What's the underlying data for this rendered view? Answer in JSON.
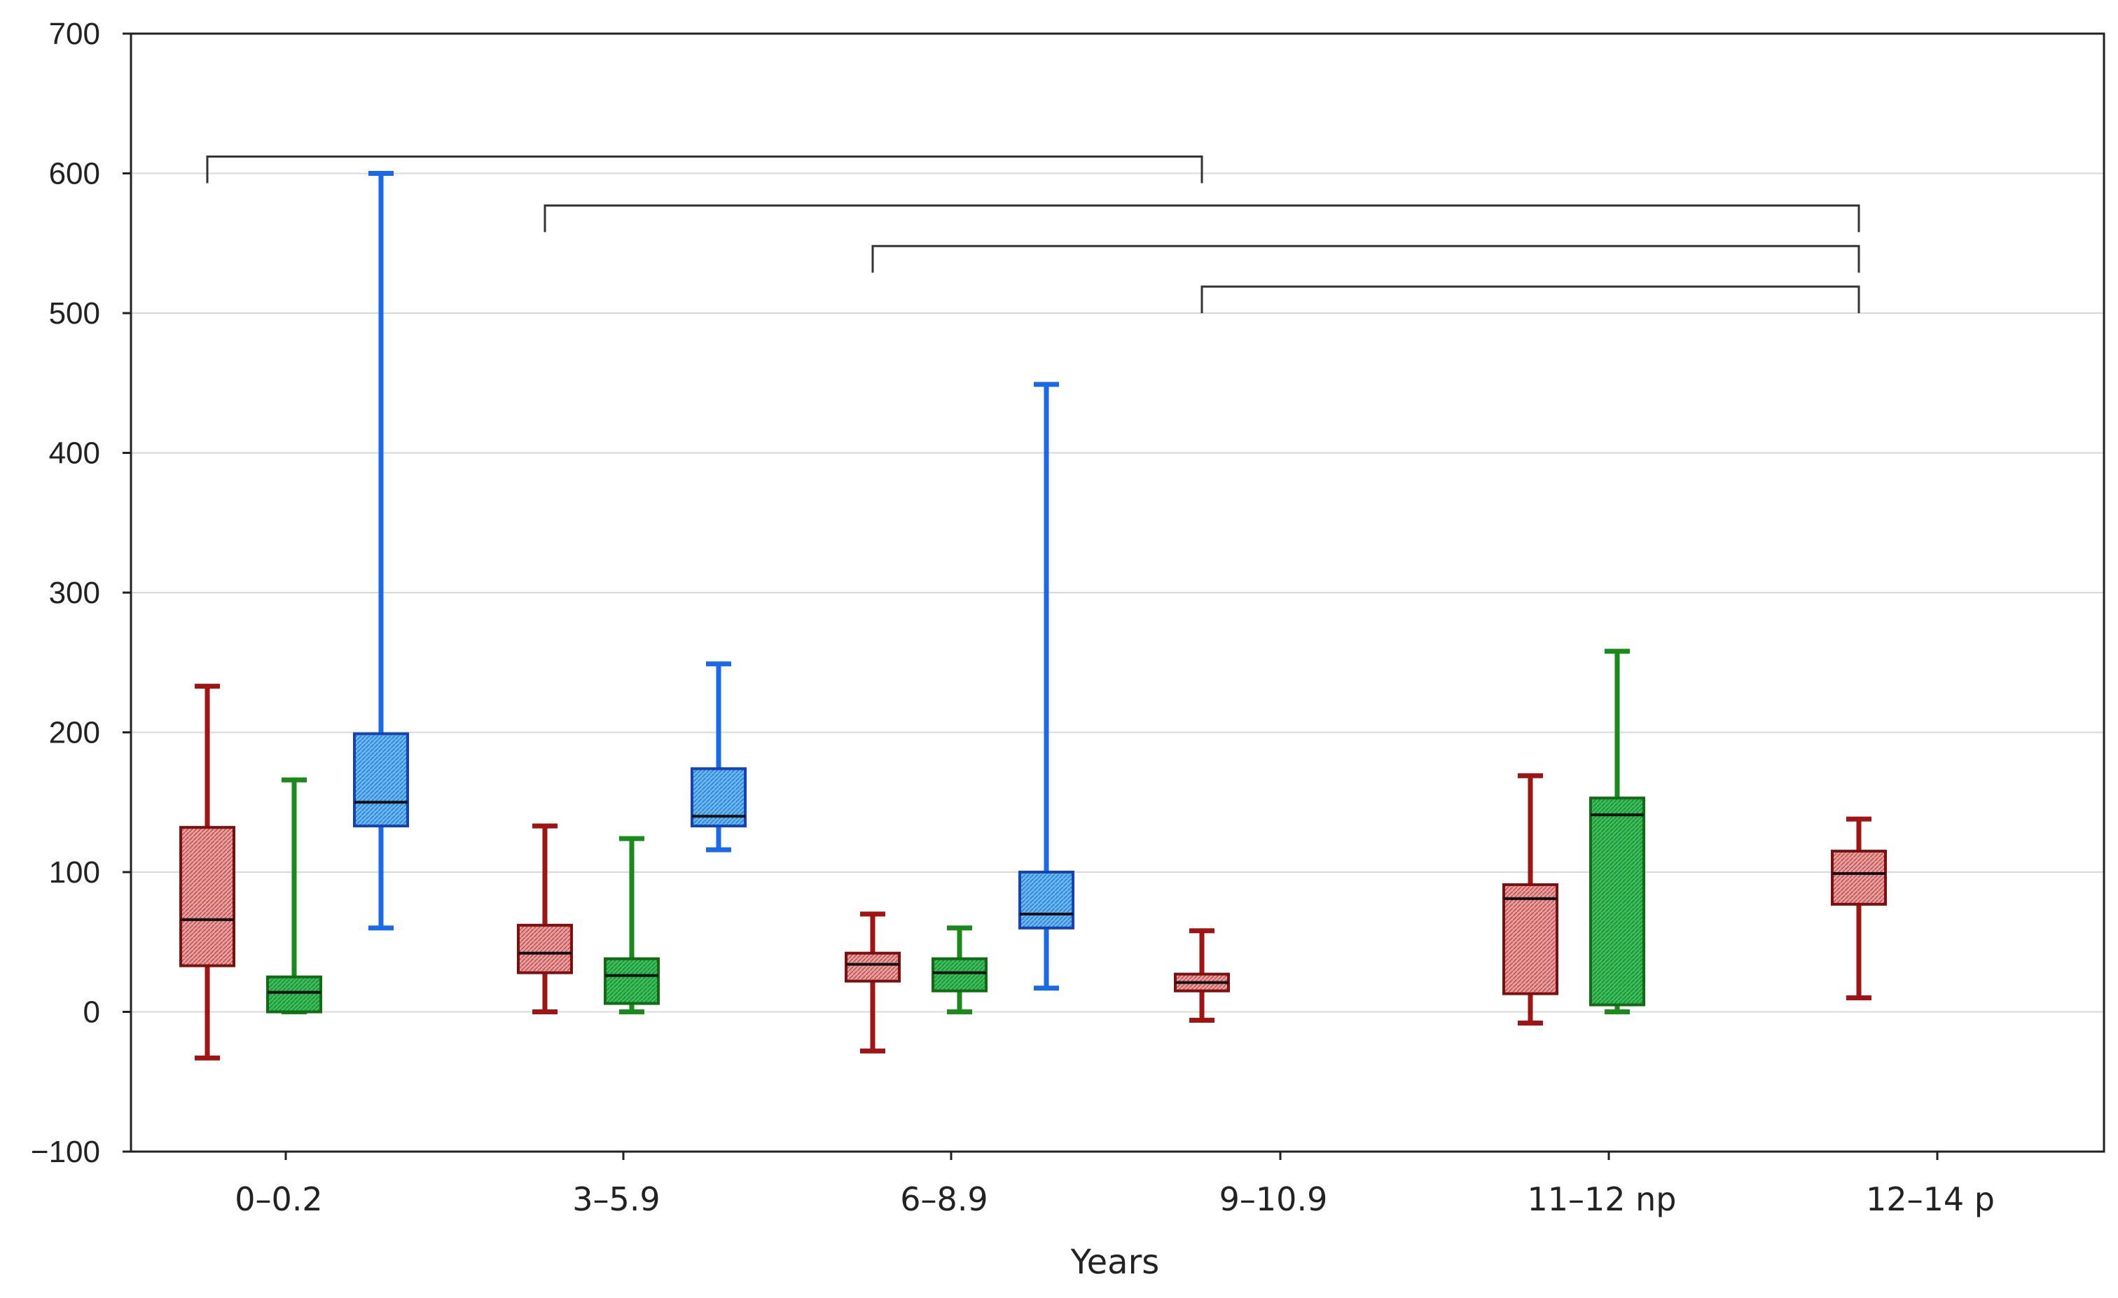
{
  "chart_data": {
    "type": "boxplot",
    "title": "",
    "xlabel": "Years",
    "ylabel": "",
    "ylim": [
      -100,
      700
    ],
    "yticks": [
      -100,
      0,
      100,
      200,
      300,
      400,
      500,
      600,
      700
    ],
    "ytick_labels": [
      "−100",
      "0",
      "100",
      "200",
      "300",
      "400",
      "500",
      "600",
      "700"
    ],
    "grid": true,
    "categories": [
      "0–0.2",
      "3–5.9",
      "6–8.9",
      "9–10.9",
      "11–12 np",
      "12–14 p"
    ],
    "series": [
      {
        "name": "red",
        "color": "#a01414",
        "fill": "#e8a0a0",
        "boxes": [
          {
            "category": "0–0.2",
            "whisker_low": -33,
            "q1": 33,
            "median": 66,
            "q3": 132,
            "whisker_high": 233
          },
          {
            "category": "3–5.9",
            "whisker_low": 0,
            "q1": 28,
            "median": 42,
            "q3": 62,
            "whisker_high": 133
          },
          {
            "category": "6–8.9",
            "whisker_low": -28,
            "q1": 22,
            "median": 34,
            "q3": 42,
            "whisker_high": 70
          },
          {
            "category": "9–10.9",
            "whisker_low": -6,
            "q1": 15,
            "median": 21,
            "q3": 27,
            "whisker_high": 58
          },
          {
            "category": "11–12 np",
            "whisker_low": -8,
            "q1": 13,
            "median": 81,
            "q3": 91,
            "whisker_high": 169
          },
          {
            "category": "12–14 p",
            "whisker_low": 10,
            "q1": 77,
            "median": 99,
            "q3": 115,
            "whisker_high": 138
          }
        ]
      },
      {
        "name": "green",
        "color": "#1a8a1a",
        "fill": "#3cbf5a",
        "boxes": [
          {
            "category": "0–0.2",
            "whisker_low": 0,
            "q1": 0,
            "median": 14,
            "q3": 25,
            "whisker_high": 166
          },
          {
            "category": "3–5.9",
            "whisker_low": 0,
            "q1": 6,
            "median": 26,
            "q3": 38,
            "whisker_high": 124
          },
          {
            "category": "6–8.9",
            "whisker_low": 0,
            "q1": 15,
            "median": 28,
            "q3": 38,
            "whisker_high": 60
          },
          {
            "category": "11–12 np",
            "whisker_low": 0,
            "q1": 5,
            "median": 141,
            "q3": 153,
            "whisker_high": 258
          }
        ]
      },
      {
        "name": "blue",
        "color": "#1a6ae8",
        "fill": "#62b4f0",
        "boxes": [
          {
            "category": "0–0.2",
            "whisker_low": 60,
            "q1": 133,
            "median": 150,
            "q3": 199,
            "whisker_high": 600
          },
          {
            "category": "3–5.9",
            "whisker_low": 116,
            "q1": 133,
            "median": 140,
            "q3": 174,
            "whisker_high": 249
          },
          {
            "category": "6–8.9",
            "whisker_low": 17,
            "q1": 60,
            "median": 70,
            "q3": 100,
            "whisker_high": 449
          }
        ]
      }
    ],
    "significance_brackets": [
      {
        "from": {
          "category": "0–0.2",
          "series": "red"
        },
        "to": {
          "category": "9–10.9",
          "series": "red"
        },
        "y": 612
      },
      {
        "from": {
          "category": "3–5.9",
          "series": "red"
        },
        "to": {
          "category": "12–14 p",
          "series": "red"
        },
        "y": 577
      },
      {
        "from": {
          "category": "6–8.9",
          "series": "red"
        },
        "to": {
          "category": "12–14 p",
          "series": "red"
        },
        "y": 548
      },
      {
        "from": {
          "category": "9–10.9",
          "series": "red"
        },
        "to": {
          "category": "12–14 p",
          "series": "red"
        },
        "y": 519
      }
    ]
  }
}
